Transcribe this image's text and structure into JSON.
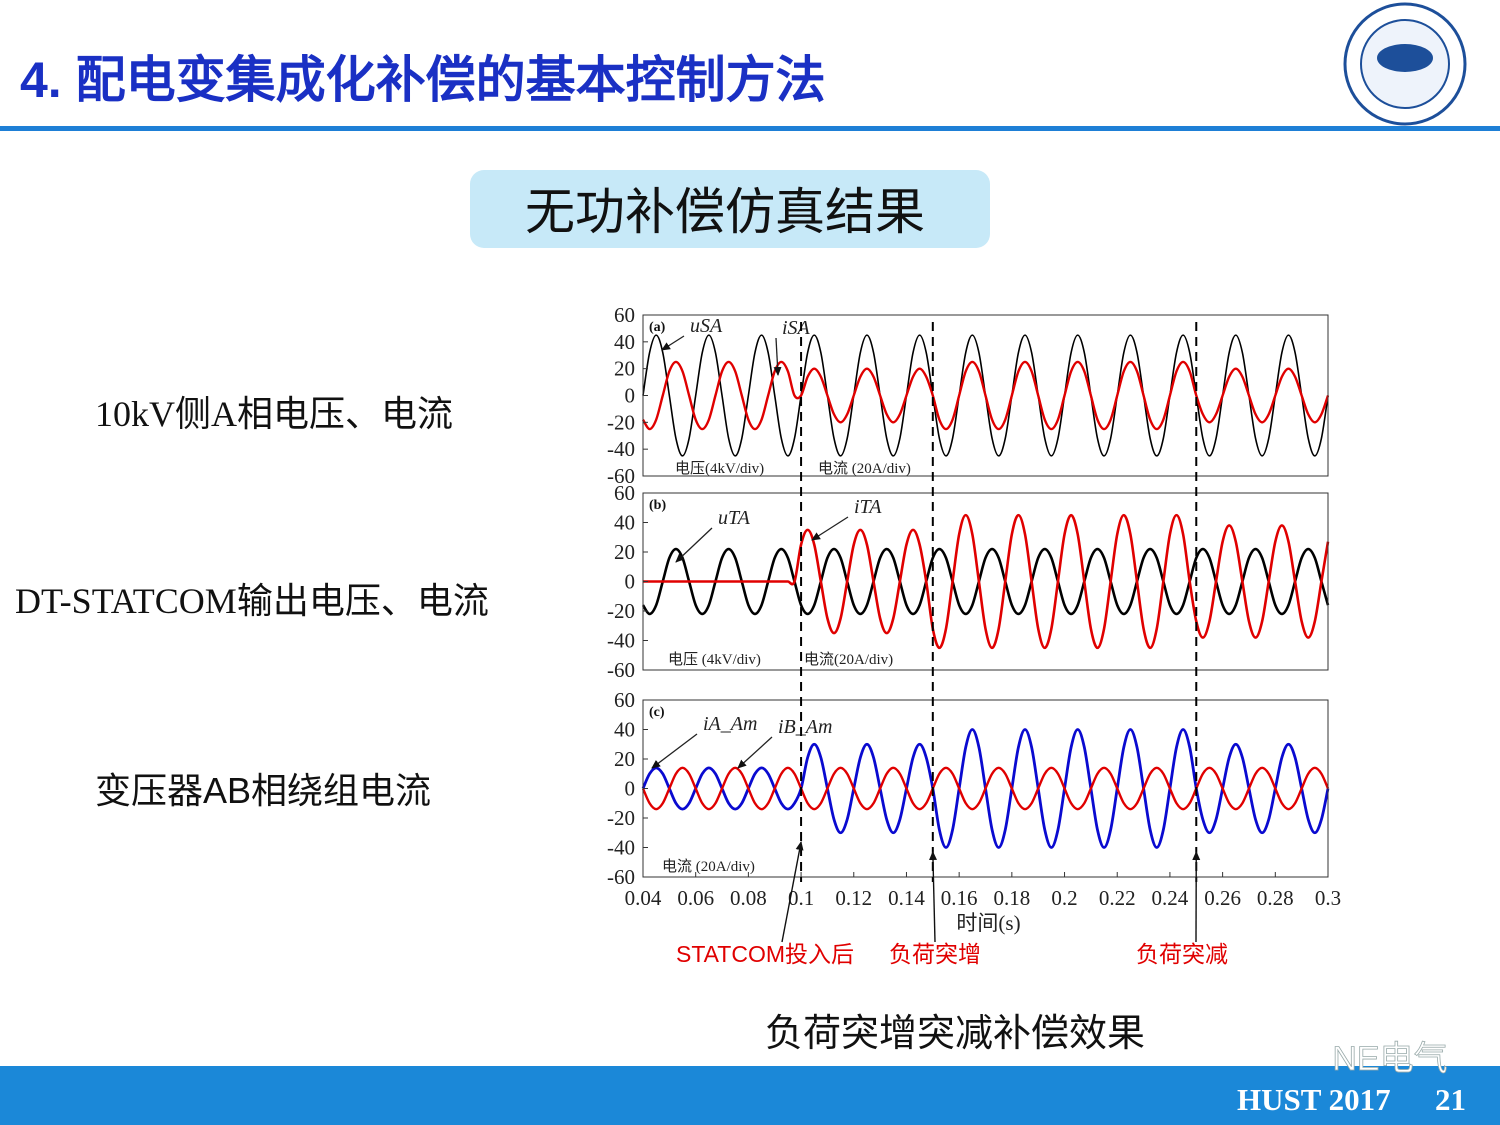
{
  "title": "4. 配电变集成化补偿的基本控制方法",
  "subtitle": "无功补偿仿真结果",
  "row_labels": [
    "10kV侧A相电压、电流",
    "DT-STATCOM输出电压、电流",
    "变压器AB相绕组电流"
  ],
  "caption": "负荷突增突减补偿效果",
  "events": [
    {
      "x": 0.1,
      "label": "STATCOM投入后"
    },
    {
      "x": 0.15,
      "label": "负荷突增"
    },
    {
      "x": 0.25,
      "label": "负荷突减"
    }
  ],
  "footer": {
    "text": "HUST 2017",
    "page": "21"
  },
  "watermark": "NE电气",
  "chart_data": [
    {
      "type": "line",
      "panel_label": "(a)",
      "xlim": [
        0.04,
        0.3
      ],
      "ylim": [
        -60,
        60
      ],
      "yticks": [
        60,
        40,
        20,
        0,
        -20,
        -40,
        -60
      ],
      "annotations": [
        "电压(4kV/div)",
        "电流 (20A/div)"
      ],
      "x": [
        0.04,
        0.0425,
        0.045,
        0.0475,
        0.05,
        0.0525,
        0.055,
        0.0575,
        0.06,
        0.0625,
        0.065,
        0.0675,
        0.07,
        0.0725,
        0.075,
        0.0775,
        0.08,
        0.0825,
        0.085,
        0.0875,
        0.09,
        0.0925,
        0.095,
        0.0975,
        0.1,
        0.1025,
        0.105,
        0.1075,
        0.11,
        0.1125,
        0.115,
        0.1175,
        0.12,
        0.1225,
        0.125,
        0.1275,
        0.13,
        0.1325,
        0.135,
        0.1375,
        0.14,
        0.1425,
        0.145,
        0.1475,
        0.15,
        0.1525,
        0.155,
        0.1575,
        0.16,
        0.1625,
        0.165,
        0.1675,
        0.17,
        0.1725,
        0.175,
        0.1775,
        0.18,
        0.1825,
        0.185,
        0.1875,
        0.19,
        0.1925,
        0.195,
        0.1975,
        0.2,
        0.2025,
        0.205,
        0.2075,
        0.21,
        0.2125,
        0.215,
        0.2175,
        0.22,
        0.2225,
        0.225,
        0.2275,
        0.23,
        0.2325,
        0.235,
        0.2375,
        0.24,
        0.2425,
        0.245,
        0.2475,
        0.25,
        0.2525,
        0.255,
        0.2575,
        0.26,
        0.2625,
        0.265,
        0.2675,
        0.27,
        0.2725,
        0.275,
        0.2775,
        0.28,
        0.2825,
        0.285,
        0.2875,
        0.29,
        0.2925,
        0.295,
        0.2975,
        0.3
      ],
      "series": [
        {
          "name": "uSA",
          "color": "#000000",
          "width": 1.6,
          "values": [
            0,
            32,
            45,
            32,
            0,
            -32,
            -45,
            -32,
            0,
            32,
            45,
            32,
            0,
            -32,
            -45,
            -32,
            0,
            32,
            45,
            32,
            0,
            -32,
            -45,
            -32,
            0,
            32,
            45,
            32,
            0,
            -32,
            -45,
            -32,
            0,
            32,
            45,
            32,
            0,
            -32,
            -45,
            -32,
            0,
            32,
            45,
            32,
            0,
            -32,
            -45,
            -32,
            0,
            32,
            45,
            32,
            0,
            -32,
            -45,
            -32,
            0,
            32,
            45,
            32,
            0,
            -32,
            -45,
            -32,
            0,
            32,
            45,
            32,
            0,
            -32,
            -45,
            -32,
            0,
            32,
            45,
            32,
            0,
            -32,
            -45,
            -32,
            0,
            32,
            45,
            32,
            0,
            -32,
            -45,
            -32,
            0,
            32,
            45,
            32,
            0,
            -32,
            -45,
            -32,
            0,
            32,
            45,
            32,
            0,
            -32,
            -45,
            -32,
            0
          ]
        },
        {
          "name": "iSA",
          "color": "#e00000",
          "width": 2.4,
          "values": [
            -18,
            -25,
            -18,
            0,
            18,
            25,
            18,
            0,
            -18,
            -25,
            -18,
            0,
            18,
            25,
            18,
            0,
            -18,
            -25,
            -18,
            0,
            18,
            25,
            18,
            0,
            0,
            14,
            20,
            14,
            0,
            -14,
            -20,
            -14,
            0,
            14,
            20,
            14,
            0,
            -14,
            -20,
            -14,
            0,
            14,
            20,
            14,
            0,
            -18,
            -25,
            -18,
            0,
            18,
            25,
            18,
            0,
            -18,
            -25,
            -18,
            0,
            18,
            25,
            18,
            0,
            -18,
            -25,
            -18,
            0,
            18,
            25,
            18,
            0,
            -18,
            -25,
            -18,
            0,
            18,
            25,
            18,
            0,
            -18,
            -25,
            -18,
            0,
            18,
            25,
            18,
            0,
            -14,
            -20,
            -14,
            0,
            14,
            20,
            14,
            0,
            -14,
            -20,
            -14,
            0,
            14,
            20,
            14,
            0,
            -14,
            -20,
            -14,
            0
          ]
        }
      ]
    },
    {
      "type": "line",
      "panel_label": "(b)",
      "xlim": [
        0.04,
        0.3
      ],
      "ylim": [
        -60,
        60
      ],
      "yticks": [
        60,
        40,
        20,
        0,
        -20,
        -40,
        -60
      ],
      "annotations": [
        "电压 (4kV/div)",
        "电流(20A/div)"
      ],
      "x": [
        0.04,
        0.0425,
        0.045,
        0.0475,
        0.05,
        0.0525,
        0.055,
        0.0575,
        0.06,
        0.0625,
        0.065,
        0.0675,
        0.07,
        0.0725,
        0.075,
        0.0775,
        0.08,
        0.0825,
        0.085,
        0.0875,
        0.09,
        0.0925,
        0.095,
        0.0975,
        0.1,
        0.1025,
        0.105,
        0.1075,
        0.11,
        0.1125,
        0.115,
        0.1175,
        0.12,
        0.1225,
        0.125,
        0.1275,
        0.13,
        0.1325,
        0.135,
        0.1375,
        0.14,
        0.1425,
        0.145,
        0.1475,
        0.15,
        0.1525,
        0.155,
        0.1575,
        0.16,
        0.1625,
        0.165,
        0.1675,
        0.17,
        0.1725,
        0.175,
        0.1775,
        0.18,
        0.1825,
        0.185,
        0.1875,
        0.19,
        0.1925,
        0.195,
        0.1975,
        0.2,
        0.2025,
        0.205,
        0.2075,
        0.21,
        0.2125,
        0.215,
        0.2175,
        0.22,
        0.2225,
        0.225,
        0.2275,
        0.23,
        0.2325,
        0.235,
        0.2375,
        0.24,
        0.2425,
        0.245,
        0.2475,
        0.25,
        0.2525,
        0.255,
        0.2575,
        0.26,
        0.2625,
        0.265,
        0.2675,
        0.27,
        0.2725,
        0.275,
        0.2775,
        0.28,
        0.2825,
        0.285,
        0.2875,
        0.29,
        0.2925,
        0.295,
        0.2975,
        0.3
      ],
      "series": [
        {
          "name": "uTA",
          "color": "#000000",
          "width": 2.6,
          "values": [
            -16,
            -22,
            -16,
            0,
            16,
            22,
            16,
            0,
            -16,
            -22,
            -16,
            0,
            16,
            22,
            16,
            0,
            -16,
            -22,
            -16,
            0,
            16,
            22,
            16,
            0,
            -16,
            -22,
            -16,
            0,
            16,
            22,
            16,
            0,
            -16,
            -22,
            -16,
            0,
            16,
            22,
            16,
            0,
            -16,
            -22,
            -16,
            0,
            16,
            22,
            16,
            0,
            -16,
            -22,
            -16,
            0,
            16,
            22,
            16,
            0,
            -16,
            -22,
            -16,
            0,
            16,
            22,
            16,
            0,
            -16,
            -22,
            -16,
            0,
            16,
            22,
            16,
            0,
            -16,
            -22,
            -16,
            0,
            16,
            22,
            16,
            0,
            -16,
            -22,
            -16,
            0,
            16,
            22,
            16,
            0,
            -16,
            -22,
            -16,
            0,
            16,
            22,
            16,
            0,
            -16,
            -22,
            -16,
            0,
            16,
            22,
            16,
            0,
            -16
          ]
        },
        {
          "name": "iTA",
          "color": "#e00000",
          "width": 2.6,
          "values": [
            0,
            0,
            0,
            0,
            0,
            0,
            0,
            0,
            0,
            0,
            0,
            0,
            0,
            0,
            0,
            0,
            0,
            0,
            0,
            0,
            0,
            0,
            0,
            0,
            25,
            35,
            25,
            0,
            -25,
            -35,
            -25,
            0,
            25,
            35,
            25,
            0,
            -25,
            -35,
            -25,
            0,
            25,
            35,
            25,
            0,
            -32,
            -45,
            -32,
            0,
            32,
            45,
            32,
            0,
            -32,
            -45,
            -32,
            0,
            32,
            45,
            32,
            0,
            -32,
            -45,
            -32,
            0,
            32,
            45,
            32,
            0,
            -32,
            -45,
            -32,
            0,
            32,
            45,
            32,
            0,
            -32,
            -45,
            -32,
            0,
            32,
            45,
            32,
            0,
            -27,
            -38,
            -27,
            0,
            27,
            38,
            27,
            0,
            -27,
            -38,
            -27,
            0,
            27,
            38,
            27,
            0,
            -27,
            -38,
            -27,
            0,
            27
          ]
        }
      ]
    },
    {
      "type": "line",
      "panel_label": "(c)",
      "xlim": [
        0.04,
        0.3
      ],
      "ylim": [
        -60,
        60
      ],
      "yticks": [
        60,
        40,
        20,
        0,
        -20,
        -40,
        -60
      ],
      "xticks": [
        0.04,
        0.06,
        0.08,
        0.1,
        0.12,
        0.14,
        0.16,
        0.18,
        0.2,
        0.22,
        0.24,
        0.26,
        0.28,
        0.3
      ],
      "xlabel": "时间(s)",
      "annotations": [
        "电流 (20A/div)"
      ],
      "x": [
        0.04,
        0.0425,
        0.045,
        0.0475,
        0.05,
        0.0525,
        0.055,
        0.0575,
        0.06,
        0.0625,
        0.065,
        0.0675,
        0.07,
        0.0725,
        0.075,
        0.0775,
        0.08,
        0.0825,
        0.085,
        0.0875,
        0.09,
        0.0925,
        0.095,
        0.0975,
        0.1,
        0.1025,
        0.105,
        0.1075,
        0.11,
        0.1125,
        0.115,
        0.1175,
        0.12,
        0.1225,
        0.125,
        0.1275,
        0.13,
        0.1325,
        0.135,
        0.1375,
        0.14,
        0.1425,
        0.145,
        0.1475,
        0.15,
        0.1525,
        0.155,
        0.1575,
        0.16,
        0.1625,
        0.165,
        0.1675,
        0.17,
        0.1725,
        0.175,
        0.1775,
        0.18,
        0.1825,
        0.185,
        0.1875,
        0.19,
        0.1925,
        0.195,
        0.1975,
        0.2,
        0.2025,
        0.205,
        0.2075,
        0.21,
        0.2125,
        0.215,
        0.2175,
        0.22,
        0.2225,
        0.225,
        0.2275,
        0.23,
        0.2325,
        0.235,
        0.2375,
        0.24,
        0.2425,
        0.245,
        0.2475,
        0.25,
        0.2525,
        0.255,
        0.2575,
        0.26,
        0.2625,
        0.265,
        0.2675,
        0.27,
        0.2725,
        0.275,
        0.2775,
        0.28,
        0.2825,
        0.285,
        0.2875,
        0.29,
        0.2925,
        0.295,
        0.2975,
        0.3
      ],
      "series": [
        {
          "name": "iA_Am",
          "color": "#0a0ad0",
          "width": 2.8,
          "values": [
            0,
            10,
            14,
            10,
            0,
            -10,
            -14,
            -10,
            0,
            10,
            14,
            10,
            0,
            -10,
            -14,
            -10,
            0,
            10,
            14,
            10,
            0,
            -10,
            -14,
            -10,
            0,
            21,
            30,
            21,
            0,
            -21,
            -30,
            -21,
            0,
            21,
            30,
            21,
            0,
            -21,
            -30,
            -21,
            0,
            21,
            30,
            21,
            0,
            -28,
            -40,
            -28,
            0,
            28,
            40,
            28,
            0,
            -28,
            -40,
            -28,
            0,
            28,
            40,
            28,
            0,
            -28,
            -40,
            -28,
            0,
            28,
            40,
            28,
            0,
            -28,
            -40,
            -28,
            0,
            28,
            40,
            28,
            0,
            -28,
            -40,
            -28,
            0,
            28,
            40,
            28,
            0,
            -21,
            -30,
            -21,
            0,
            21,
            30,
            21,
            0,
            -21,
            -30,
            -21,
            0,
            21,
            30,
            21,
            0,
            -21,
            -30,
            -21,
            0
          ]
        },
        {
          "name": "iB_Am",
          "color": "#e00000",
          "width": 2.4,
          "values": [
            0,
            -10,
            -14,
            -10,
            0,
            10,
            14,
            10,
            0,
            -10,
            -14,
            -10,
            0,
            10,
            14,
            10,
            0,
            -10,
            -14,
            -10,
            0,
            10,
            14,
            10,
            0,
            -10,
            -14,
            -10,
            0,
            10,
            14,
            10,
            0,
            -10,
            -14,
            -10,
            0,
            10,
            14,
            10,
            0,
            -10,
            -14,
            -10,
            0,
            10,
            14,
            10,
            0,
            -10,
            -14,
            -10,
            0,
            10,
            14,
            10,
            0,
            -10,
            -14,
            -10,
            0,
            10,
            14,
            10,
            0,
            -10,
            -14,
            -10,
            0,
            10,
            14,
            10,
            0,
            -10,
            -14,
            -10,
            0,
            10,
            14,
            10,
            0,
            -10,
            -14,
            -10,
            0,
            10,
            14,
            10,
            0,
            -10,
            -14,
            -10,
            0,
            10,
            14,
            10,
            0,
            -10,
            -14,
            -10,
            0,
            10,
            14,
            10,
            0
          ]
        }
      ]
    }
  ]
}
